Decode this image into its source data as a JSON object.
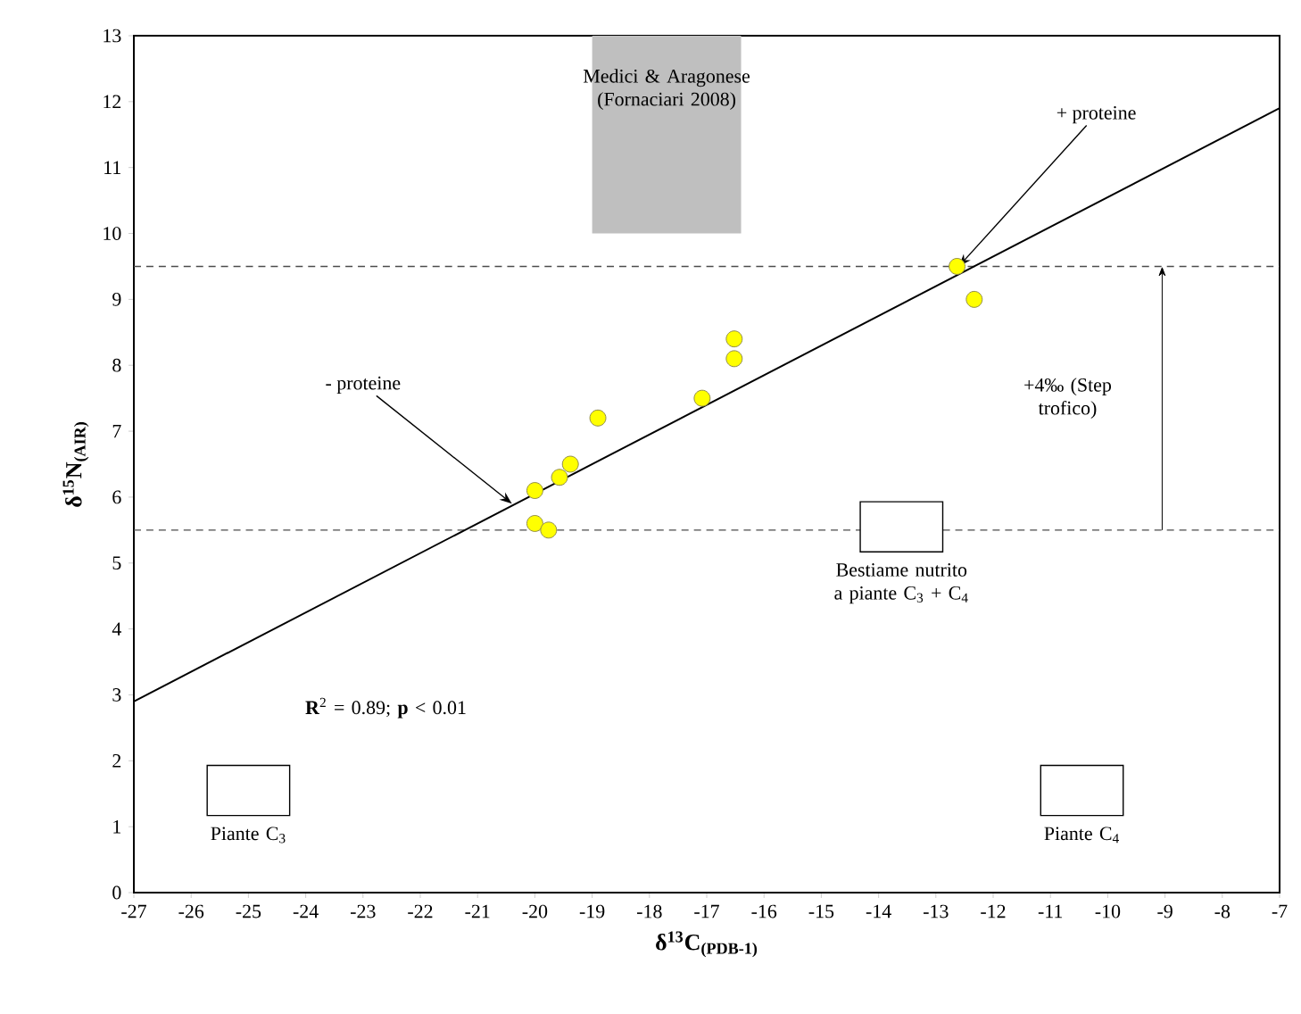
{
  "chart_data": {
    "type": "scatter",
    "xlabel": "δ$^{13}$C$_{(PDB-1)}$",
    "ylabel": "δ$^{15}$N$_{(AIR)}$",
    "series": [
      {
        "color": "#ffff00",
        "marker": "circle",
        "x": [
          -20.0,
          -20.0,
          -19.76,
          -19.57,
          -19.38,
          -18.9,
          -17.08,
          -16.52,
          -16.52,
          -12.63,
          -12.33
        ],
        "values": [
          6.1,
          5.6,
          5.5,
          6.3,
          6.5,
          7.2,
          7.5,
          8.4,
          8.1,
          9.5,
          9.0
        ]
      },
      {
        "type": "line",
        "color": "#000000",
        "x": [
          -27,
          -7
        ],
        "values": [
          2.9,
          11.9
        ]
      }
    ],
    "xlim": [
      -27,
      -7
    ],
    "ylim": [
      0,
      13
    ],
    "xticks": [
      -27,
      -26,
      -25,
      -24,
      -23,
      -22,
      -21,
      -20,
      -19,
      -18,
      -17,
      -16,
      -15,
      -14,
      -13,
      -12,
      -11,
      -10,
      -9,
      -8,
      -7
    ],
    "yticks": [
      0,
      1,
      2,
      3,
      4,
      5,
      6,
      7,
      8,
      9,
      10,
      11,
      12,
      13
    ],
    "ref_lines": [
      {
        "axis": "y",
        "value": 9.5,
        "line_style": "dashed"
      },
      {
        "axis": "y",
        "value": 5.5,
        "line_style": "dashed"
      }
    ],
    "bands": [
      {
        "axis": "x",
        "from": -19,
        "to": -16.4,
        "color": "#bfbfbf",
        "label": "Medici & Aragonese (Fornaciari 2008)"
      }
    ],
    "annotations": [
      {
        "text": "+ proteine",
        "x": -12.6,
        "y": 9.5
      },
      {
        "text": "- proteine",
        "x": -20.4,
        "y": 5.9
      },
      "+4‰ (Step trofico)",
      "Bestiame nutrito a piante C$_{3}$ + C$_{4}$",
      "Piante C$_{3}$",
      "Piante C$_{4}$",
      "**R**$^{2}$ = 0.89; **p** < 0.01"
    ],
    "grid": false
  }
}
